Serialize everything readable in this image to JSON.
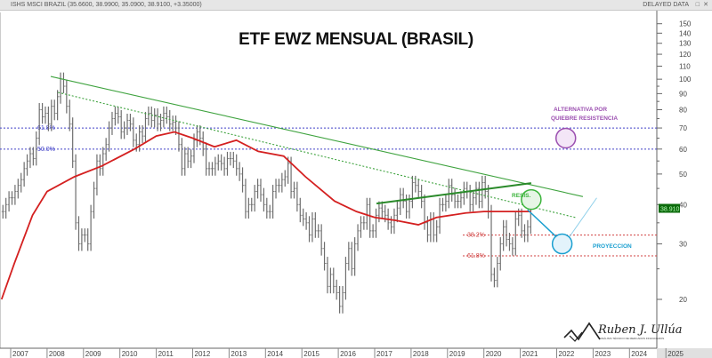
{
  "header": {
    "symbol_info": "ISHS MSCI BRAZIL (35.6600, 38.9900, 35.0900, 38.9100, +3.35000)",
    "delayed": "DELAYED DATA",
    "restore_icon": "restore-icon",
    "close_icon": "close-icon"
  },
  "logo": {
    "name": "Ruben J. Ullúa",
    "tagline": "ANÁLISIS TÉCNICO DE MERCADOS FINANCIEROS"
  },
  "colors": {
    "bars": "#6e6e6e",
    "ma": "#d42020",
    "trend": "#3fa33f",
    "fib_upper": "#4040c8",
    "fib_lower": "#d04040",
    "purple": "#9b4fb0",
    "projection": "#1a9fd0",
    "price_tag": "#0b6a0b"
  },
  "chart_data": {
    "type": "ohlc-bar",
    "title": "ETF EWZ MENSUAL (BRASIL)",
    "xlabel": "",
    "ylabel": "",
    "y_scale": "log",
    "ylim": [
      16,
      160
    ],
    "x_range": [
      2006.75,
      2025.8
    ],
    "x_ticks": [
      "2007",
      "2008",
      "2009",
      "2010",
      "2011",
      "2012",
      "2013",
      "2014",
      "2015",
      "2016",
      "2017",
      "2018",
      "2019",
      "2020",
      "2021",
      "2022",
      "2023",
      "2024",
      "2025"
    ],
    "y_ticks": [
      20,
      30,
      40,
      50,
      60,
      70,
      80,
      90,
      100,
      110,
      120,
      130,
      140,
      150
    ],
    "start_month": "2006-10",
    "monthly_close": [
      38,
      40,
      42,
      42,
      44,
      46,
      48,
      52,
      55,
      58,
      56,
      65,
      80,
      76,
      78,
      72,
      82,
      78,
      88,
      100,
      95,
      82,
      72,
      55,
      35,
      30,
      32,
      32,
      30,
      38,
      45,
      55,
      52,
      58,
      62,
      70,
      75,
      78,
      76,
      68,
      70,
      74,
      72,
      64,
      62,
      68,
      66,
      75,
      78,
      74,
      77,
      72,
      74,
      78,
      76,
      72,
      73,
      70,
      62,
      52,
      58,
      55,
      57,
      64,
      68,
      65,
      60,
      52,
      52,
      52,
      54,
      55,
      54,
      52,
      56,
      56,
      55,
      52,
      50,
      46,
      38,
      40,
      40,
      44,
      46,
      43,
      40,
      38,
      38,
      44,
      46,
      46,
      48,
      49,
      54,
      44,
      45,
      40,
      37,
      36,
      35,
      32,
      36,
      33,
      33,
      29,
      26,
      22,
      24,
      22,
      21,
      19,
      21,
      26,
      29,
      25,
      30,
      33,
      35,
      35,
      40,
      33,
      33,
      37,
      39,
      38,
      37,
      35,
      34,
      37,
      39,
      43,
      41,
      38,
      41,
      47,
      46,
      44,
      41,
      35,
      32,
      36,
      32,
      34,
      40,
      40,
      41,
      46,
      43,
      41,
      41,
      42,
      45,
      44,
      40,
      42,
      45,
      41,
      47,
      44,
      38,
      24,
      23,
      26,
      30,
      34,
      31,
      30,
      29,
      36,
      37,
      33,
      32,
      34,
      38.91
    ],
    "last_price": "38.910",
    "moving_average": {
      "name": "MA",
      "points": [
        [
          2006.75,
          20
        ],
        [
          2007.1,
          26
        ],
        [
          2007.6,
          37
        ],
        [
          2008.0,
          44
        ],
        [
          2008.75,
          49
        ],
        [
          2009.5,
          53
        ],
        [
          2010.4,
          60
        ],
        [
          2011.0,
          66
        ],
        [
          2011.5,
          68
        ],
        [
          2012.0,
          65
        ],
        [
          2012.6,
          61
        ],
        [
          2013.2,
          64
        ],
        [
          2013.8,
          59
        ],
        [
          2014.5,
          57
        ],
        [
          2015.1,
          49
        ],
        [
          2015.9,
          41
        ],
        [
          2016.5,
          38
        ],
        [
          2017.0,
          36.4
        ],
        [
          2017.6,
          35.6
        ],
        [
          2018.2,
          34.5
        ],
        [
          2018.7,
          36.4
        ],
        [
          2019.5,
          37.6
        ],
        [
          2020.0,
          38
        ],
        [
          2021.3,
          38
        ]
      ]
    },
    "trendlines": [
      {
        "name": "upper-resistance",
        "style": "solid",
        "from": [
          2008.1,
          102
        ],
        "to": [
          2022.72,
          42.4
        ]
      },
      {
        "name": "inner-resistance",
        "style": "dotted",
        "from": [
          2008.3,
          90.8
        ],
        "to": [
          2022.55,
          36.3
        ]
      },
      {
        "name": "resis-channel",
        "style": "solid-thick",
        "from": [
          2017.05,
          40.3
        ],
        "to": [
          2021.3,
          46.8
        ]
      }
    ],
    "fib_levels_upper": [
      {
        "label": "61.8%",
        "value": 70
      },
      {
        "label": "50.0%",
        "value": 60
      }
    ],
    "fib_levels_lower": [
      {
        "label": "38.2%",
        "value": 32
      },
      {
        "label": "61.8%",
        "value": 27.5
      }
    ],
    "annotations": {
      "alternativa": [
        "ALTERNATIVA POR",
        "QUIEBRE RESISTENCIA"
      ],
      "resis": "RESIS.",
      "proyeccion": "PROYECCION",
      "circle_alternativa": [
        2022.25,
        65
      ],
      "circle_resis": [
        2021.3,
        41.5
      ],
      "circle_proyeccion": [
        2022.15,
        30
      ],
      "projection_path": [
        [
          2021.2,
          38.5
        ],
        [
          2022.0,
          31.5
        ],
        [
          2022.3,
          31
        ],
        [
          2023.1,
          42
        ]
      ]
    }
  }
}
